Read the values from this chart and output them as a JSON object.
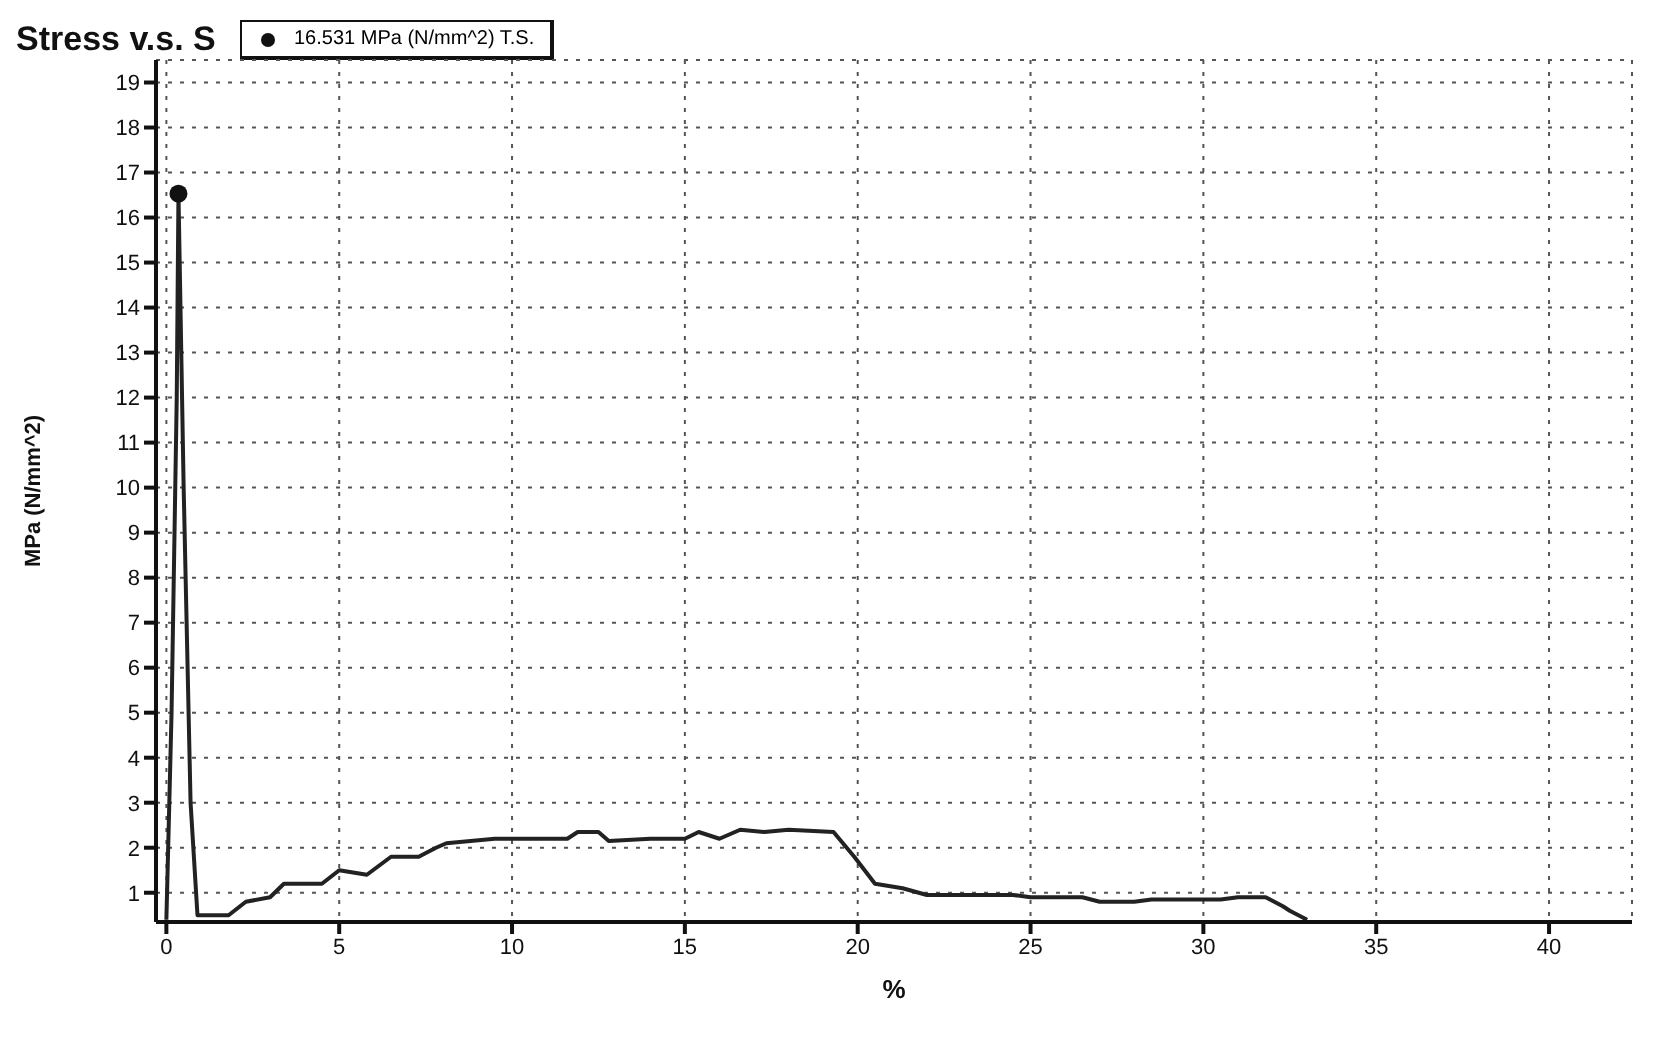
{
  "chart_data": {
    "type": "line",
    "title": "Stress v.s. S",
    "xlabel": "%",
    "ylabel": "MPa (N/mm^2)",
    "xlim": [
      -0.3,
      42.4
    ],
    "xticks": [
      0,
      5,
      10,
      15,
      20,
      25,
      30,
      35,
      40
    ],
    "ylim": [
      0.35,
      19.5
    ],
    "yticks": [
      1,
      2,
      3,
      4,
      5,
      6,
      7,
      8,
      9,
      10,
      11,
      12,
      13,
      14,
      15,
      16,
      17,
      18,
      19
    ],
    "grid": true,
    "legend": "top left",
    "line_style": "solid",
    "series": [
      {
        "color": "#222222",
        "marker": "none",
        "x": [
          0,
          0.15,
          0.3,
          0.35,
          0.5,
          0.7,
          0.9,
          1.8,
          2.3,
          3,
          3.4,
          4.5,
          5,
          5.8,
          6.5,
          7.3,
          7.8,
          8.1,
          9.5,
          11.6,
          11.9,
          12.5,
          12.8,
          14,
          15,
          15.4,
          16,
          16.6,
          17.3,
          18,
          19.3,
          19.9,
          20.5,
          21.3,
          22,
          24.5,
          25,
          26.5,
          27,
          28,
          28.5,
          30.5,
          31,
          31.8,
          32.3,
          32.5,
          33
        ],
        "values": [
          0.4,
          5,
          12,
          16.531,
          10,
          3,
          0.5,
          0.5,
          0.8,
          0.9,
          1.2,
          1.2,
          1.5,
          1.4,
          1.8,
          1.8,
          2,
          2.1,
          2.2,
          2.2,
          2.35,
          2.35,
          2.15,
          2.2,
          2.2,
          2.35,
          2.2,
          2.4,
          2.35,
          2.4,
          2.35,
          1.8,
          1.2,
          1.1,
          0.95,
          0.95,
          0.9,
          0.9,
          0.8,
          0.8,
          0.85,
          0.85,
          0.9,
          0.9,
          0.7,
          0.6,
          0.4
        ]
      },
      {
        "type": "scatter",
        "name": "16.531 MPa (N/mm^2) T.S.",
        "color": "#111111",
        "marker": "circle",
        "x": [
          0.35
        ],
        "values": [
          16.531
        ]
      }
    ]
  }
}
